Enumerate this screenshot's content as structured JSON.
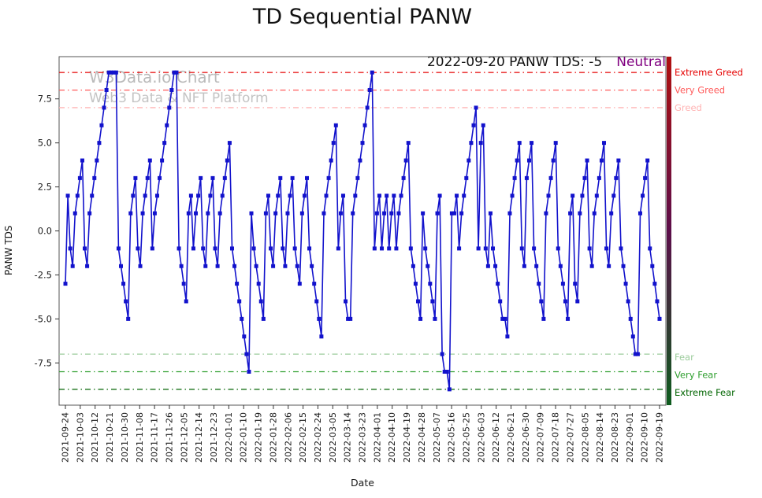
{
  "chart_data": {
    "type": "line",
    "title": "TD Sequential PANW",
    "xlabel": "Date",
    "ylabel": "PANW TDS",
    "annotation": {
      "text": "2022-09-20 PANW TDS: -5",
      "status": "Neutral",
      "status_color": "#800080"
    },
    "watermark": {
      "line1": "W3Data.io Chart",
      "line2": "Web3 Data & NFT Platform"
    },
    "legend_position": "none",
    "grid": false,
    "ylim": [
      -9.9,
      9.9
    ],
    "y_ticks": [
      -7.5,
      -5.0,
      -2.5,
      0.0,
      2.5,
      5.0,
      7.5
    ],
    "x_tick_labels": [
      "2021-09-24",
      "2021-10-03",
      "2021-10-12",
      "2021-10-21",
      "2021-10-30",
      "2021-11-08",
      "2021-11-17",
      "2021-11-26",
      "2021-12-05",
      "2021-12-14",
      "2021-12-23",
      "2022-01-01",
      "2022-01-10",
      "2022-01-19",
      "2022-01-28",
      "2022-02-06",
      "2022-02-15",
      "2022-02-24",
      "2022-03-05",
      "2022-03-14",
      "2022-03-23",
      "2022-04-01",
      "2022-04-10",
      "2022-04-19",
      "2022-04-28",
      "2022-05-07",
      "2022-05-16",
      "2022-05-25",
      "2022-06-03",
      "2022-06-12",
      "2022-06-21",
      "2022-06-30",
      "2022-07-09",
      "2022-07-18",
      "2022-07-27",
      "2022-08-05",
      "2022-08-14",
      "2022-08-23",
      "2022-09-01",
      "2022-09-10",
      "2022-09-19"
    ],
    "threshold_lines": [
      {
        "y": 9,
        "label": "Extreme Greed",
        "color": "#e60000"
      },
      {
        "y": 8,
        "label": "Very Greed",
        "color": "#ff5c5c"
      },
      {
        "y": 7,
        "label": "Greed",
        "color": "#ffb3b3"
      },
      {
        "y": -7,
        "label": "Fear",
        "color": "#9ccc9c"
      },
      {
        "y": -8,
        "label": "Very Fear",
        "color": "#2e9e2e"
      },
      {
        "y": -9,
        "label": "Extreme Fear",
        "color": "#006400"
      }
    ],
    "sentiment_bar_colors": [
      "#b01010",
      "#5c0e4a",
      "#0e5c1e"
    ],
    "series": [
      {
        "name": "PANW TDS",
        "color": "#1212cc",
        "marker": "square",
        "values": [
          -3,
          2,
          -1,
          -2,
          1,
          2,
          3,
          4,
          -1,
          -2,
          1,
          2,
          3,
          4,
          5,
          6,
          7,
          8,
          9,
          9,
          9,
          9,
          -1,
          -2,
          -3,
          -4,
          -5,
          1,
          2,
          3,
          -1,
          -2,
          1,
          2,
          3,
          4,
          -1,
          1,
          2,
          3,
          4,
          5,
          6,
          7,
          8,
          9,
          9,
          -1,
          -2,
          -3,
          -4,
          1,
          2,
          -1,
          1,
          2,
          3,
          -1,
          -2,
          1,
          2,
          3,
          -1,
          -2,
          1,
          2,
          3,
          4,
          5,
          -1,
          -2,
          -3,
          -4,
          -5,
          -6,
          -7,
          -8,
          1,
          -1,
          -2,
          -3,
          -4,
          -5,
          1,
          2,
          -1,
          -2,
          1,
          2,
          3,
          -1,
          -2,
          1,
          2,
          3,
          -1,
          -2,
          -3,
          1,
          2,
          3,
          -1,
          -2,
          -3,
          -4,
          -5,
          -6,
          1,
          2,
          3,
          4,
          5,
          6,
          -1,
          1,
          2,
          -4,
          -5,
          -5,
          1,
          2,
          3,
          4,
          5,
          6,
          7,
          8,
          9,
          -1,
          1,
          2,
          -1,
          1,
          2,
          -1,
          1,
          2,
          -1,
          1,
          2,
          3,
          4,
          5,
          -1,
          -2,
          -3,
          -4,
          -5,
          1,
          -1,
          -2,
          -3,
          -4,
          -5,
          1,
          2,
          -7,
          -8,
          -8,
          -9,
          1,
          1,
          2,
          -1,
          1,
          2,
          3,
          4,
          5,
          6,
          7,
          -1,
          5,
          6,
          -1,
          -2,
          1,
          -1,
          -2,
          -3,
          -4,
          -5,
          -5,
          -6,
          1,
          2,
          3,
          4,
          5,
          -1,
          -2,
          3,
          4,
          5,
          -1,
          -2,
          -3,
          -4,
          -5,
          1,
          2,
          3,
          4,
          5,
          -1,
          -2,
          -3,
          -4,
          -5,
          1,
          2,
          -3,
          -4,
          1,
          2,
          3,
          4,
          -1,
          -2,
          1,
          2,
          3,
          4,
          5,
          -1,
          -2,
          1,
          2,
          3,
          4,
          -1,
          -2,
          -3,
          -4,
          -5,
          -6,
          -7,
          -7,
          1,
          2,
          3,
          4,
          -1,
          -2,
          -3,
          -4,
          -5
        ]
      }
    ]
  }
}
